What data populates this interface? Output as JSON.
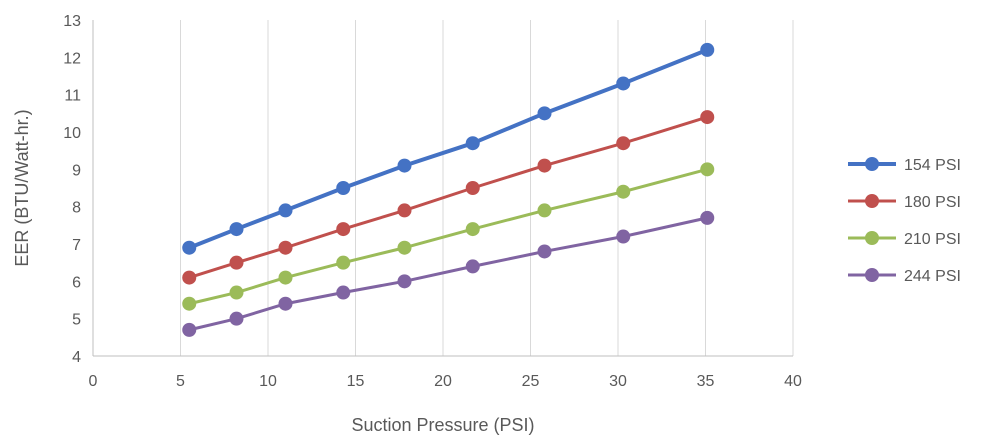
{
  "chart_data": {
    "type": "line",
    "title": "",
    "xlabel": "Suction Pressure (PSI)",
    "ylabel": "EER (BTU/Watt-hr.)",
    "xlim": [
      0,
      40
    ],
    "ylim": [
      4,
      13
    ],
    "x_ticks": [
      "0",
      "5",
      "10",
      "15",
      "20",
      "25",
      "30",
      "35",
      "40"
    ],
    "y_ticks": [
      "4",
      "5",
      "6",
      "7",
      "8",
      "9",
      "10",
      "11",
      "12",
      "13"
    ],
    "grid": "vertical",
    "legend_position": "right",
    "x": [
      5.5,
      8.2,
      11.0,
      14.3,
      17.8,
      21.7,
      25.8,
      30.3,
      35.1
    ],
    "series": [
      {
        "name": "154 PSI",
        "color": "#4472C4",
        "values": [
          6.9,
          7.4,
          7.9,
          8.5,
          9.1,
          9.7,
          10.5,
          11.3,
          12.2
        ]
      },
      {
        "name": "180 PSI",
        "color": "#C0504D",
        "values": [
          6.1,
          6.5,
          6.9,
          7.4,
          7.9,
          8.5,
          9.1,
          9.7,
          10.4
        ]
      },
      {
        "name": "210 PSI",
        "color": "#9BBB59",
        "values": [
          5.4,
          5.7,
          6.1,
          6.5,
          6.9,
          7.4,
          7.9,
          8.4,
          9.0
        ]
      },
      {
        "name": "244 PSI",
        "color": "#8064A2",
        "values": [
          4.7,
          5.0,
          5.4,
          5.7,
          6.0,
          6.4,
          6.8,
          7.2,
          7.7
        ]
      }
    ]
  }
}
